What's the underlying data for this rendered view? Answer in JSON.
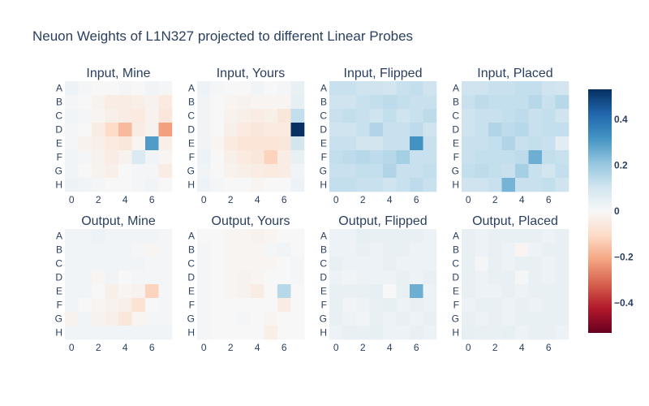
{
  "chart_data": {
    "type": "heatmap",
    "title": "Neuon Weights of L1N327 projected to different Linear Probes",
    "row_labels": [
      "A",
      "B",
      "C",
      "D",
      "E",
      "F",
      "G",
      "H"
    ],
    "x_ticks": [
      0,
      2,
      4,
      6
    ],
    "colorscale": "RdBu",
    "zmin": -0.53,
    "zmax": 0.53,
    "colorbar_ticks": [
      0.4,
      0.2,
      0,
      -0.2,
      -0.4
    ],
    "colorbar_tick_labels": [
      "0.4",
      "0.2",
      "0",
      "−0.2",
      "−0.4"
    ],
    "panels": [
      {
        "title": "Input, Mine",
        "values": [
          [
            0.03,
            0.01,
            0.0,
            0.0,
            0.01,
            0.0,
            0.02,
            0.01
          ],
          [
            0.01,
            0.0,
            -0.02,
            -0.04,
            -0.04,
            -0.03,
            -0.02,
            -0.05
          ],
          [
            0.02,
            0.01,
            -0.01,
            -0.03,
            -0.04,
            -0.05,
            -0.02,
            -0.06
          ],
          [
            0.01,
            0.0,
            -0.04,
            -0.1,
            -0.17,
            -0.04,
            -0.02,
            -0.22
          ],
          [
            0.01,
            -0.02,
            -0.03,
            -0.05,
            -0.06,
            -0.01,
            0.3,
            -0.03
          ],
          [
            0.02,
            0.01,
            -0.02,
            -0.04,
            -0.02,
            0.08,
            0.02,
            -0.01
          ],
          [
            0.02,
            0.0,
            -0.02,
            -0.03,
            0.0,
            0.01,
            0.01,
            -0.04
          ],
          [
            0.03,
            0.02,
            0.01,
            0.0,
            0.0,
            0.01,
            0.02,
            0.0
          ]
        ]
      },
      {
        "title": "Input, Yours",
        "values": [
          [
            0.03,
            0.01,
            0.0,
            0.0,
            0.02,
            0.0,
            0.01,
            0.04
          ],
          [
            0.02,
            0.0,
            -0.01,
            -0.02,
            -0.01,
            -0.01,
            -0.01,
            0.05
          ],
          [
            0.02,
            0.0,
            -0.02,
            -0.03,
            -0.04,
            -0.03,
            -0.06,
            0.13
          ],
          [
            0.02,
            0.0,
            -0.03,
            -0.05,
            -0.06,
            -0.05,
            -0.05,
            0.53
          ],
          [
            0.02,
            -0.01,
            -0.05,
            -0.07,
            -0.07,
            -0.07,
            -0.06,
            0.1
          ],
          [
            0.03,
            0.0,
            -0.03,
            -0.05,
            -0.06,
            -0.12,
            -0.04,
            0.04
          ],
          [
            0.02,
            0.0,
            -0.02,
            -0.03,
            -0.04,
            -0.05,
            -0.04,
            0.02
          ],
          [
            0.03,
            0.01,
            0.0,
            0.0,
            -0.01,
            0.0,
            0.0,
            0.03
          ]
        ]
      },
      {
        "title": "Input, Flipped",
        "values": [
          [
            0.12,
            0.12,
            0.11,
            0.11,
            0.1,
            0.12,
            0.13,
            0.11
          ],
          [
            0.11,
            0.11,
            0.12,
            0.13,
            0.14,
            0.13,
            0.12,
            0.12
          ],
          [
            0.12,
            0.13,
            0.12,
            0.11,
            0.13,
            0.11,
            0.12,
            0.14
          ],
          [
            0.11,
            0.11,
            0.12,
            0.16,
            0.12,
            0.12,
            0.14,
            0.11
          ],
          [
            0.12,
            0.12,
            0.1,
            0.1,
            0.12,
            0.12,
            0.32,
            0.12
          ],
          [
            0.13,
            0.14,
            0.15,
            0.14,
            0.15,
            0.18,
            0.12,
            0.12
          ],
          [
            0.12,
            0.12,
            0.13,
            0.13,
            0.16,
            0.12,
            0.12,
            0.13
          ],
          [
            0.13,
            0.13,
            0.12,
            0.12,
            0.11,
            0.12,
            0.14,
            0.12
          ]
        ]
      },
      {
        "title": "Input, Placed",
        "values": [
          [
            0.11,
            0.11,
            0.12,
            0.12,
            0.13,
            0.13,
            0.11,
            0.1
          ],
          [
            0.12,
            0.14,
            0.13,
            0.13,
            0.13,
            0.15,
            0.12,
            0.15
          ],
          [
            0.11,
            0.12,
            0.12,
            0.13,
            0.14,
            0.12,
            0.13,
            0.11
          ],
          [
            0.11,
            0.12,
            0.16,
            0.14,
            0.15,
            0.12,
            0.13,
            0.13
          ],
          [
            0.12,
            0.12,
            0.13,
            0.16,
            0.12,
            0.13,
            0.12,
            0.06
          ],
          [
            0.12,
            0.13,
            0.13,
            0.13,
            0.14,
            0.26,
            0.13,
            0.12
          ],
          [
            0.13,
            0.14,
            0.13,
            0.12,
            0.18,
            0.12,
            0.1,
            0.13
          ],
          [
            0.11,
            0.11,
            0.12,
            0.25,
            0.12,
            0.12,
            0.13,
            0.11
          ]
        ]
      },
      {
        "title": "Output, Mine",
        "values": [
          [
            0.02,
            0.02,
            0.03,
            0.02,
            0.02,
            0.02,
            0.02,
            0.01
          ],
          [
            0.02,
            0.02,
            0.02,
            0.02,
            0.02,
            0.01,
            -0.01,
            0.01
          ],
          [
            0.02,
            0.02,
            0.02,
            0.02,
            0.02,
            0.02,
            0.01,
            0.01
          ],
          [
            0.02,
            0.02,
            -0.01,
            0.02,
            0.0,
            0.01,
            0.01,
            0.01
          ],
          [
            0.02,
            0.02,
            0.0,
            -0.03,
            -0.01,
            -0.02,
            -0.12,
            0.01
          ],
          [
            0.02,
            0.0,
            -0.01,
            -0.02,
            -0.03,
            -0.08,
            0.0,
            0.01
          ],
          [
            -0.02,
            0.02,
            -0.02,
            -0.03,
            -0.06,
            -0.01,
            0.01,
            0.01
          ],
          [
            0.02,
            0.02,
            0.02,
            0.02,
            0.02,
            0.02,
            0.02,
            0.02
          ]
        ]
      },
      {
        "title": "Output, Yours",
        "values": [
          [
            0.0,
            0.0,
            -0.01,
            -0.01,
            -0.02,
            -0.01,
            0.0,
            0.0
          ],
          [
            0.01,
            0.0,
            -0.01,
            -0.01,
            -0.01,
            0.01,
            0.02,
            0.0
          ],
          [
            0.01,
            0.0,
            -0.01,
            -0.01,
            -0.01,
            -0.01,
            0.0,
            0.01
          ],
          [
            0.01,
            0.0,
            -0.01,
            -0.02,
            -0.01,
            0.0,
            0.0,
            0.01
          ],
          [
            0.01,
            0.0,
            -0.01,
            -0.02,
            -0.04,
            0.0,
            0.15,
            0.0
          ],
          [
            0.01,
            0.0,
            0.0,
            0.0,
            0.0,
            0.0,
            -0.04,
            0.0
          ],
          [
            0.01,
            0.0,
            0.0,
            0.01,
            0.0,
            -0.01,
            0.0,
            0.0
          ],
          [
            0.01,
            0.0,
            0.0,
            0.0,
            0.0,
            -0.03,
            0.0,
            0.0
          ]
        ]
      },
      {
        "title": "Output, Flipped",
        "values": [
          [
            0.03,
            0.03,
            0.05,
            0.04,
            0.04,
            0.04,
            0.04,
            0.03
          ],
          [
            0.03,
            0.03,
            0.04,
            0.03,
            0.04,
            0.04,
            0.03,
            0.03
          ],
          [
            0.04,
            0.03,
            0.03,
            0.03,
            0.04,
            0.03,
            0.03,
            0.03
          ],
          [
            0.03,
            0.02,
            0.03,
            0.03,
            0.03,
            0.04,
            0.03,
            0.04
          ],
          [
            0.04,
            0.04,
            0.04,
            0.05,
            0.0,
            0.04,
            0.26,
            0.03
          ],
          [
            0.04,
            0.02,
            0.03,
            0.04,
            0.05,
            0.03,
            0.04,
            0.03
          ],
          [
            0.04,
            0.03,
            0.02,
            0.04,
            0.03,
            0.04,
            0.03,
            0.04
          ],
          [
            0.03,
            0.04,
            0.04,
            0.05,
            0.03,
            0.03,
            0.04,
            0.03
          ]
        ]
      },
      {
        "title": "Output, Placed",
        "values": [
          [
            0.04,
            0.03,
            0.04,
            0.04,
            0.04,
            0.04,
            0.03,
            0.04
          ],
          [
            0.04,
            0.03,
            0.04,
            0.03,
            -0.01,
            0.03,
            0.04,
            0.04
          ],
          [
            0.04,
            0.01,
            0.04,
            0.03,
            0.04,
            0.04,
            0.03,
            0.04
          ],
          [
            0.04,
            0.03,
            0.04,
            0.04,
            0.01,
            0.04,
            0.03,
            0.04
          ],
          [
            0.04,
            0.03,
            0.03,
            0.04,
            0.03,
            0.04,
            0.04,
            0.04
          ],
          [
            0.03,
            0.04,
            0.04,
            0.03,
            0.04,
            0.03,
            0.04,
            0.04
          ],
          [
            0.04,
            0.03,
            0.04,
            0.03,
            0.04,
            0.04,
            0.04,
            0.04
          ],
          [
            0.05,
            0.04,
            0.04,
            0.05,
            0.03,
            0.04,
            0.04,
            0.03
          ]
        ]
      }
    ]
  }
}
